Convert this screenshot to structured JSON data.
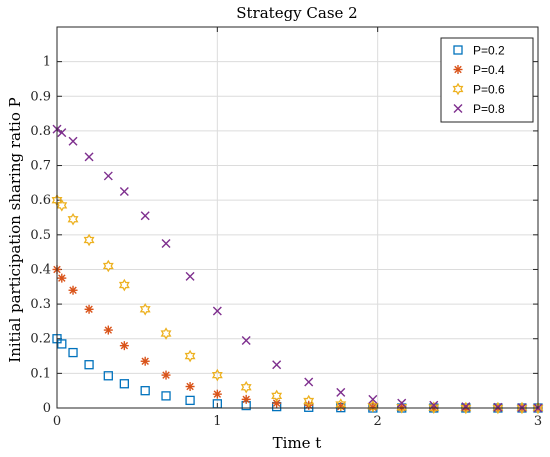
{
  "chart_data": {
    "type": "scatter",
    "title": "Strategy Case 2",
    "xlabel": "Time t",
    "ylabel": "Initial participation sharing ratio P",
    "xlim": [
      0,
      3
    ],
    "ylim": [
      0,
      1.1
    ],
    "xticks": [
      "0",
      "1",
      "2",
      "3"
    ],
    "yticks": [
      "0",
      "0.1",
      "0.2",
      "0.3",
      "0.4",
      "0.5",
      "0.6",
      "0.7",
      "0.8",
      "0.9",
      "1"
    ],
    "grid": true,
    "legend_position": "top-right",
    "series": [
      {
        "name": "P=0.2",
        "marker": "square",
        "color": "#0072BD",
        "x": [
          0,
          0.03,
          0.1,
          0.2,
          0.32,
          0.42,
          0.55,
          0.68,
          0.83,
          1.0,
          1.18,
          1.37,
          1.57,
          1.77,
          1.97,
          2.15,
          2.35,
          2.55,
          2.75,
          2.9,
          3.0
        ],
        "y": [
          0.2,
          0.185,
          0.16,
          0.125,
          0.093,
          0.07,
          0.05,
          0.035,
          0.022,
          0.012,
          0.007,
          0.004,
          0.002,
          0.001,
          0.0,
          0.0,
          0.0,
          0.0,
          0.0,
          0.0,
          0.0
        ]
      },
      {
        "name": "P=0.4",
        "marker": "asterisk",
        "color": "#D95319",
        "x": [
          0,
          0.03,
          0.1,
          0.2,
          0.32,
          0.42,
          0.55,
          0.68,
          0.83,
          1.0,
          1.18,
          1.37,
          1.57,
          1.77,
          1.97,
          2.15,
          2.35,
          2.55,
          2.75,
          2.9,
          3.0
        ],
        "y": [
          0.4,
          0.375,
          0.34,
          0.285,
          0.225,
          0.18,
          0.135,
          0.095,
          0.062,
          0.04,
          0.025,
          0.014,
          0.008,
          0.004,
          0.002,
          0.001,
          0.0,
          0.0,
          0.0,
          0.0,
          0.0
        ]
      },
      {
        "name": "P=0.6",
        "marker": "hexagram",
        "color": "#EDB120",
        "x": [
          0,
          0.03,
          0.1,
          0.2,
          0.32,
          0.42,
          0.55,
          0.68,
          0.83,
          1.0,
          1.18,
          1.37,
          1.57,
          1.77,
          1.97,
          2.15,
          2.35,
          2.55,
          2.75,
          2.9,
          3.0
        ],
        "y": [
          0.6,
          0.585,
          0.545,
          0.485,
          0.41,
          0.355,
          0.285,
          0.215,
          0.15,
          0.095,
          0.06,
          0.035,
          0.02,
          0.01,
          0.005,
          0.002,
          0.001,
          0.0,
          0.0,
          0.0,
          0.0
        ]
      },
      {
        "name": "P=0.8",
        "marker": "x",
        "color": "#7E2F8E",
        "x": [
          0,
          0.03,
          0.1,
          0.2,
          0.32,
          0.42,
          0.55,
          0.68,
          0.83,
          1.0,
          1.18,
          1.37,
          1.57,
          1.77,
          1.97,
          2.15,
          2.35,
          2.55,
          2.75,
          2.9,
          3.0
        ],
        "y": [
          0.805,
          0.795,
          0.77,
          0.725,
          0.67,
          0.625,
          0.555,
          0.475,
          0.38,
          0.28,
          0.195,
          0.125,
          0.075,
          0.045,
          0.025,
          0.014,
          0.008,
          0.004,
          0.002,
          0.001,
          0.0
        ]
      }
    ]
  }
}
